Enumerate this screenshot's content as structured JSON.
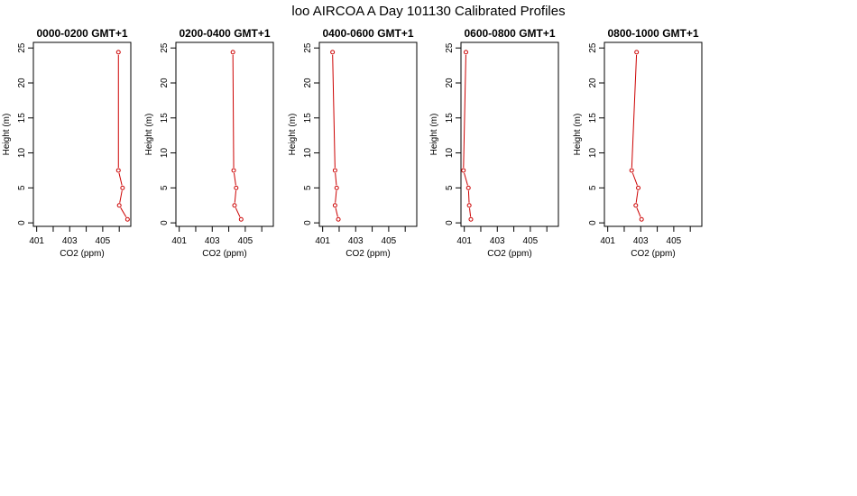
{
  "title": "loo AIRCOA A  Day 101130  Calibrated Profiles",
  "colors": {
    "line": "#cc0000",
    "point": "#cc0000",
    "frame": "#000000"
  },
  "chart_data": [
    {
      "type": "line",
      "title": "0000-0200 GMT+1",
      "xlabel": "CO2 (ppm)",
      "ylabel": "Height (m)",
      "x_ticks": [
        "401",
        "403",
        "405"
      ],
      "y_ticks": [
        "0",
        "5",
        "10",
        "15",
        "20",
        "25"
      ],
      "xlim": [
        400.8,
        406.7
      ],
      "ylim": [
        -0.5,
        25.8
      ],
      "series": [
        {
          "heights": [
            0.5,
            2.5,
            5,
            7.5,
            24.4
          ],
          "co2": [
            406.5,
            406.0,
            406.2,
            405.95,
            405.95
          ]
        }
      ]
    },
    {
      "type": "line",
      "title": "0200-0400 GMT+1",
      "xlabel": "CO2 (ppm)",
      "ylabel": "Height (m)",
      "x_ticks": [
        "401",
        "403",
        "405"
      ],
      "y_ticks": [
        "0",
        "5",
        "10",
        "15",
        "20",
        "25"
      ],
      "xlim": [
        400.8,
        406.7
      ],
      "ylim": [
        -0.5,
        25.8
      ],
      "series": [
        {
          "heights": [
            0.5,
            2.5,
            5,
            7.5,
            24.4
          ],
          "co2": [
            404.75,
            404.35,
            404.45,
            404.3,
            404.25
          ]
        }
      ]
    },
    {
      "type": "line",
      "title": "0400-0600 GMT+1",
      "xlabel": "CO2 (ppm)",
      "ylabel": "Height (m)",
      "x_ticks": [
        "401",
        "403",
        "405"
      ],
      "y_ticks": [
        "0",
        "5",
        "10",
        "15",
        "20",
        "25"
      ],
      "xlim": [
        400.8,
        406.7
      ],
      "ylim": [
        -0.5,
        25.8
      ],
      "series": [
        {
          "heights": [
            0.5,
            2.5,
            5,
            7.5,
            24.4
          ],
          "co2": [
            401.95,
            401.75,
            401.85,
            401.75,
            401.6
          ]
        }
      ]
    },
    {
      "type": "line",
      "title": "0600-0800 GMT+1",
      "xlabel": "CO2 (ppm)",
      "ylabel": "Height (m)",
      "x_ticks": [
        "401",
        "403",
        "405"
      ],
      "y_ticks": [
        "0",
        "5",
        "10",
        "15",
        "20",
        "25"
      ],
      "xlim": [
        400.8,
        406.7
      ],
      "ylim": [
        -0.5,
        25.8
      ],
      "series": [
        {
          "heights": [
            0.5,
            2.5,
            5,
            7.5,
            24.4
          ],
          "co2": [
            401.4,
            401.3,
            401.25,
            400.95,
            401.1
          ]
        }
      ]
    },
    {
      "type": "line",
      "title": "0800-1000 GMT+1",
      "xlabel": "CO2 (ppm)",
      "ylabel": "Height (m)",
      "x_ticks": [
        "401",
        "403",
        "405"
      ],
      "y_ticks": [
        "0",
        "5",
        "10",
        "15",
        "20",
        "25"
      ],
      "xlim": [
        400.8,
        406.7
      ],
      "ylim": [
        -0.5,
        25.8
      ],
      "series": [
        {
          "heights": [
            0.5,
            2.5,
            5,
            7.5,
            24.4
          ],
          "co2": [
            403.05,
            402.7,
            402.85,
            402.45,
            402.75
          ]
        }
      ]
    }
  ]
}
